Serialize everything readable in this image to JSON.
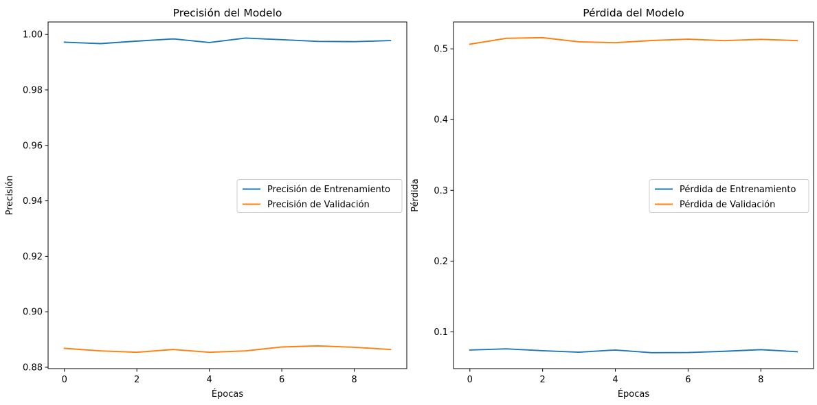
{
  "chart_data": [
    {
      "type": "line",
      "title": "Precisión del Modelo",
      "xlabel": "Épocas",
      "ylabel": "Precisión",
      "x": [
        0,
        1,
        2,
        3,
        4,
        5,
        6,
        7,
        8,
        9
      ],
      "xlim": [
        -0.45,
        9.45
      ],
      "ylim": [
        0.8795,
        1.0045
      ],
      "xticks": [
        0,
        2,
        4,
        6,
        8
      ],
      "yticks": [
        0.88,
        0.9,
        0.92,
        0.94,
        0.96,
        0.98,
        1.0
      ],
      "ytick_labels": [
        "0.88",
        "0.90",
        "0.92",
        "0.94",
        "0.96",
        "0.98",
        "1.00"
      ],
      "legend_position": "center-right",
      "grid": false,
      "series": [
        {
          "name": "Precisión de Entrenamiento",
          "color": "#1f77b4",
          "values": [
            0.9972,
            0.9967,
            0.9976,
            0.9984,
            0.9971,
            0.9987,
            0.9981,
            0.9975,
            0.9974,
            0.9978
          ]
        },
        {
          "name": "Precisión de Validación",
          "color": "#ff7f0e",
          "values": [
            0.8868,
            0.8859,
            0.8854,
            0.8864,
            0.8854,
            0.8859,
            0.8873,
            0.8877,
            0.8872,
            0.8864
          ]
        }
      ]
    },
    {
      "type": "line",
      "title": "Pérdida del Modelo",
      "xlabel": "Épocas",
      "ylabel": "Pérdida",
      "x": [
        0,
        1,
        2,
        3,
        4,
        5,
        6,
        7,
        8,
        9
      ],
      "xlim": [
        -0.45,
        9.45
      ],
      "ylim": [
        0.048,
        0.538
      ],
      "xticks": [
        0,
        2,
        4,
        6,
        8
      ],
      "yticks": [
        0.1,
        0.2,
        0.3,
        0.4,
        0.5
      ],
      "ytick_labels": [
        "0.1",
        "0.2",
        "0.3",
        "0.4",
        "0.5"
      ],
      "legend_position": "center-right",
      "grid": false,
      "series": [
        {
          "name": "Pérdida de Entrenamiento",
          "color": "#1f77b4",
          "values": [
            0.0743,
            0.076,
            0.0733,
            0.0712,
            0.0743,
            0.0705,
            0.0707,
            0.0725,
            0.0748,
            0.0719
          ]
        },
        {
          "name": "Pérdida de Validación",
          "color": "#ff7f0e",
          "values": [
            0.5066,
            0.5149,
            0.5158,
            0.5099,
            0.5087,
            0.5118,
            0.5137,
            0.5116,
            0.5134,
            0.5117
          ]
        }
      ]
    }
  ]
}
